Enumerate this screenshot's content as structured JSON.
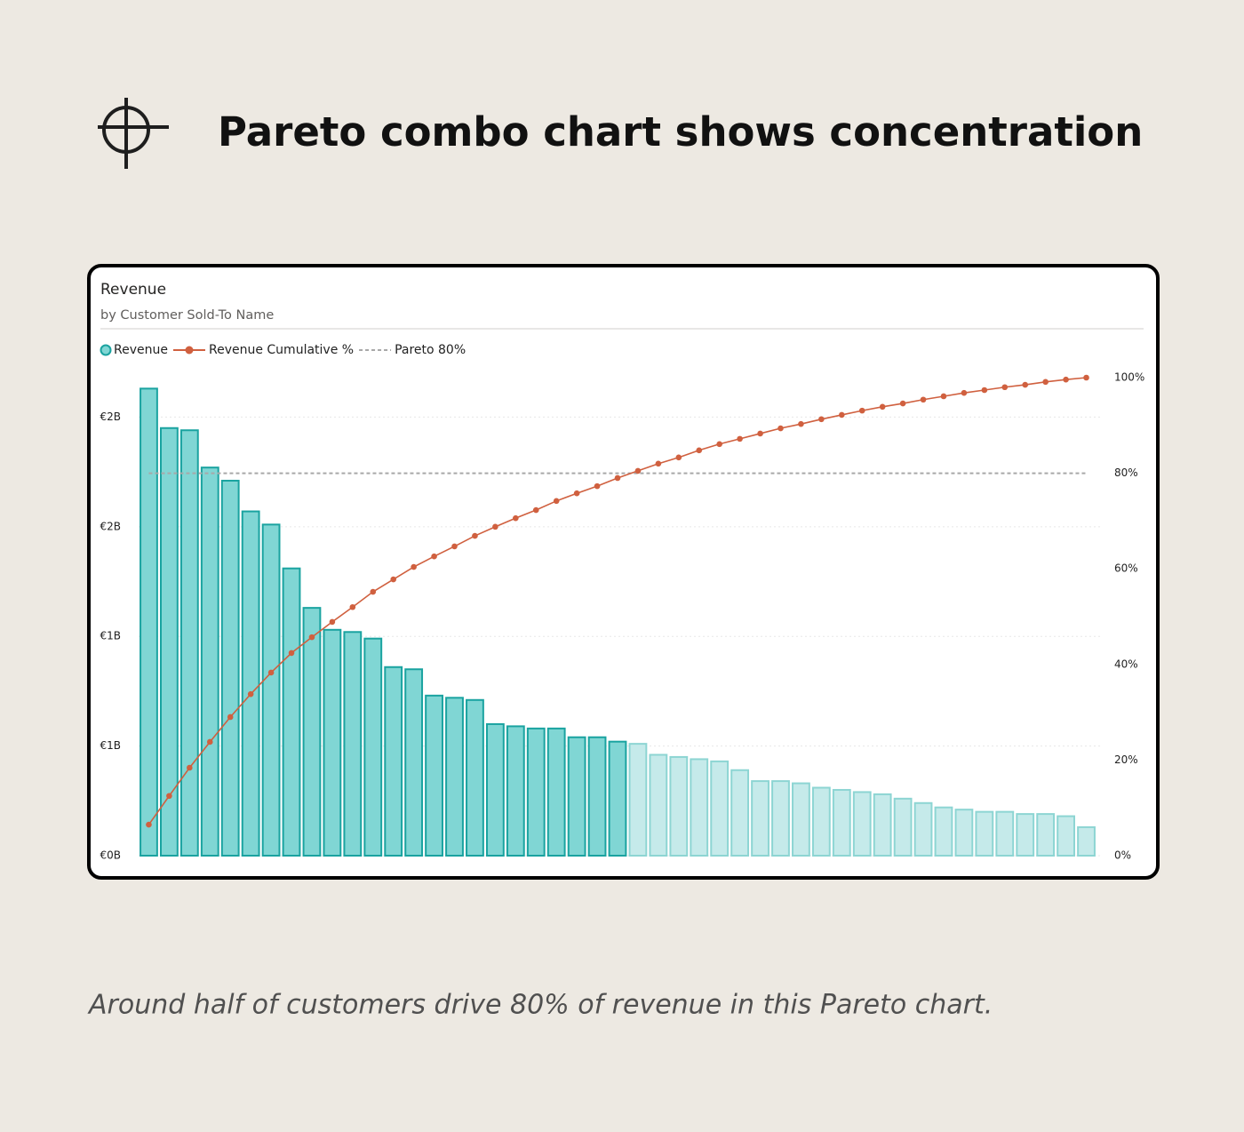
{
  "header": {
    "title": "Pareto combo chart shows concentration"
  },
  "chart_data": {
    "type": "pareto",
    "title": "Revenue",
    "subtitle": "by Customer Sold-To Name",
    "categories": [
      null,
      null,
      null,
      null,
      null,
      null,
      null,
      null,
      null,
      null,
      null,
      null,
      null,
      null,
      null,
      null,
      null,
      null,
      null,
      null,
      null,
      null,
      null,
      null,
      null,
      null,
      null,
      null,
      null,
      null,
      null,
      null,
      null,
      null,
      null,
      null,
      null,
      null,
      null,
      null,
      null,
      null,
      null,
      null,
      null,
      null,
      null
    ],
    "series": [
      {
        "name": "Revenue",
        "type": "bar",
        "color": "#80d6d4",
        "edge_color": "#1aa3a0",
        "faded_color": "#c5eaea",
        "faded_edge_color": "#8dd5d3",
        "values": [
          2.13,
          1.95,
          1.94,
          1.77,
          1.71,
          1.57,
          1.51,
          1.31,
          1.13,
          1.03,
          1.02,
          0.99,
          0.86,
          0.85,
          0.73,
          0.72,
          0.71,
          0.6,
          0.59,
          0.58,
          0.58,
          0.54,
          0.54,
          0.52,
          0.51,
          0.46,
          0.45,
          0.44,
          0.43,
          0.39,
          0.34,
          0.34,
          0.33,
          0.31,
          0.3,
          0.29,
          0.28,
          0.26,
          0.24,
          0.22,
          0.21,
          0.2,
          0.2,
          0.19,
          0.19,
          0.18,
          0.13
        ]
      },
      {
        "name": "Revenue Cumulative %",
        "type": "line",
        "axis": "y2",
        "color": "#d0603f",
        "values": [
          6.5,
          12.5,
          18.4,
          23.8,
          29.0,
          33.8,
          38.3,
          42.4,
          45.7,
          48.9,
          52.0,
          55.2,
          57.8,
          60.4,
          62.6,
          64.7,
          66.9,
          68.8,
          70.6,
          72.3,
          74.2,
          75.8,
          77.3,
          79.0,
          80.5,
          82.0,
          83.3,
          84.8,
          86.1,
          87.2,
          88.3,
          89.4,
          90.3,
          91.3,
          92.2,
          93.1,
          93.9,
          94.6,
          95.4,
          96.1,
          96.8,
          97.4,
          98.0,
          98.5,
          99.1,
          99.6,
          100
        ]
      },
      {
        "name": "Pareto 80%",
        "type": "reference",
        "axis": "y2",
        "color": "#a8a8a8",
        "value": 80
      }
    ],
    "ylim": [
      0,
      2.18
    ],
    "yticks": [
      {
        "value": 0,
        "label": "€0B"
      },
      {
        "value": 0.5,
        "label": "€1B"
      },
      {
        "value": 1,
        "label": "€1B"
      },
      {
        "value": 1.5,
        "label": "€2B"
      },
      {
        "value": 2,
        "label": "€2B"
      }
    ],
    "y2lim": [
      0,
      100
    ],
    "y2ticks": [
      {
        "value": 0,
        "label": "0%"
      },
      {
        "value": 20,
        "label": "20%"
      },
      {
        "value": 40,
        "label": "40%"
      },
      {
        "value": 60,
        "label": "60%"
      },
      {
        "value": 80,
        "label": "80%"
      },
      {
        "value": 100,
        "label": "100%"
      }
    ],
    "grid": true,
    "legend": "top-left"
  },
  "caption": "Around half of customers drive 80% of revenue in this Pareto chart."
}
